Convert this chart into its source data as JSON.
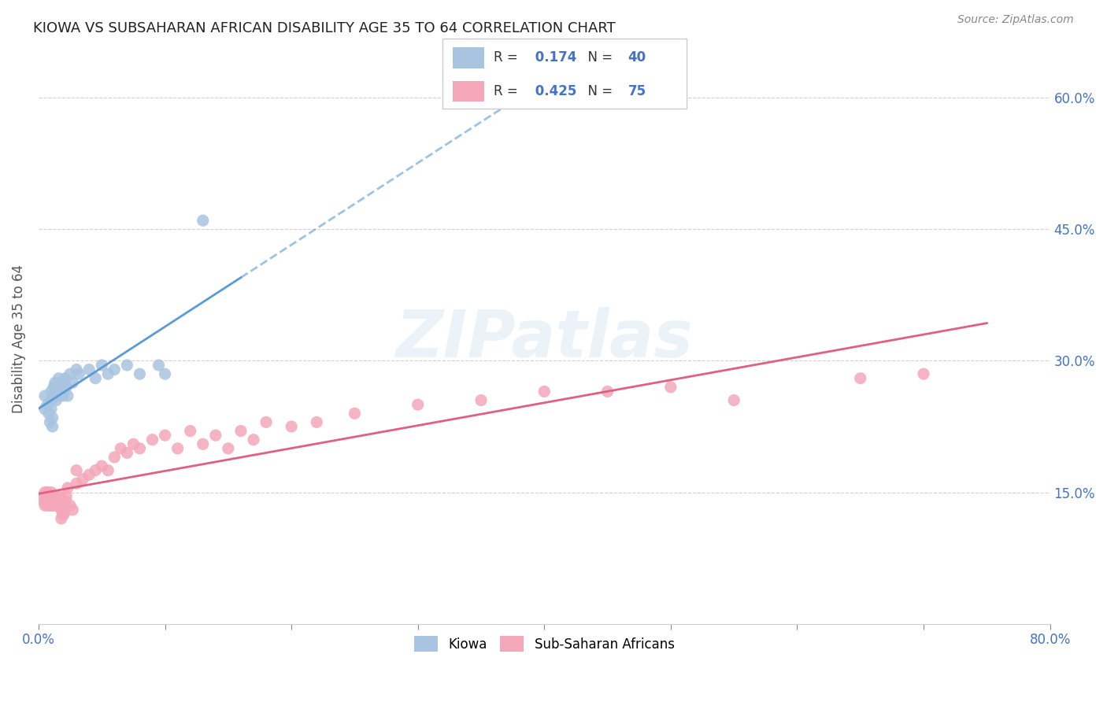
{
  "title": "KIOWA VS SUBSAHARAN AFRICAN DISABILITY AGE 35 TO 64 CORRELATION CHART",
  "source": "Source: ZipAtlas.com",
  "ylabel": "Disability Age 35 to 64",
  "xlim": [
    0.0,
    0.8
  ],
  "ylim": [
    0.0,
    0.65
  ],
  "ytick_positions": [
    0.15,
    0.3,
    0.45,
    0.6
  ],
  "ytick_labels": [
    "15.0%",
    "30.0%",
    "45.0%",
    "60.0%"
  ],
  "kiowa_R": 0.174,
  "kiowa_N": 40,
  "subsaharan_R": 0.425,
  "subsaharan_N": 75,
  "kiowa_color": "#a8c4e0",
  "subsaharan_color": "#f4a7b9",
  "kiowa_line_color": "#5b9bd5",
  "subsaharan_line_color": "#e06080",
  "background_color": "#ffffff",
  "grid_color": "#d0d0d0",
  "watermark": "ZIPatlas",
  "kiowa_x": [
    0.005,
    0.005,
    0.007,
    0.008,
    0.009,
    0.01,
    0.01,
    0.01,
    0.011,
    0.011,
    0.012,
    0.012,
    0.013,
    0.013,
    0.014,
    0.015,
    0.015,
    0.016,
    0.017,
    0.018,
    0.019,
    0.02,
    0.02,
    0.021,
    0.022,
    0.023,
    0.025,
    0.027,
    0.03,
    0.032,
    0.04,
    0.045,
    0.05,
    0.055,
    0.06,
    0.07,
    0.08,
    0.095,
    0.1,
    0.13
  ],
  "kiowa_y": [
    0.245,
    0.26,
    0.25,
    0.24,
    0.23,
    0.265,
    0.255,
    0.245,
    0.235,
    0.225,
    0.27,
    0.26,
    0.275,
    0.265,
    0.255,
    0.27,
    0.26,
    0.28,
    0.275,
    0.27,
    0.26,
    0.275,
    0.265,
    0.28,
    0.27,
    0.26,
    0.285,
    0.275,
    0.29,
    0.285,
    0.29,
    0.28,
    0.295,
    0.285,
    0.29,
    0.295,
    0.285,
    0.295,
    0.285,
    0.46
  ],
  "subsaharan_x": [
    0.003,
    0.004,
    0.005,
    0.005,
    0.006,
    0.006,
    0.007,
    0.007,
    0.008,
    0.008,
    0.009,
    0.009,
    0.01,
    0.01,
    0.01,
    0.01,
    0.011,
    0.011,
    0.012,
    0.012,
    0.013,
    0.013,
    0.014,
    0.014,
    0.015,
    0.015,
    0.016,
    0.016,
    0.017,
    0.017,
    0.018,
    0.018,
    0.019,
    0.019,
    0.02,
    0.02,
    0.02,
    0.021,
    0.022,
    0.023,
    0.025,
    0.027,
    0.03,
    0.03,
    0.035,
    0.04,
    0.045,
    0.05,
    0.055,
    0.06,
    0.065,
    0.07,
    0.075,
    0.08,
    0.09,
    0.1,
    0.11,
    0.12,
    0.13,
    0.14,
    0.15,
    0.16,
    0.17,
    0.18,
    0.2,
    0.22,
    0.25,
    0.3,
    0.35,
    0.4,
    0.45,
    0.5,
    0.55,
    0.65,
    0.7
  ],
  "subsaharan_y": [
    0.145,
    0.14,
    0.135,
    0.15,
    0.14,
    0.145,
    0.135,
    0.15,
    0.14,
    0.145,
    0.135,
    0.14,
    0.145,
    0.135,
    0.15,
    0.14,
    0.135,
    0.145,
    0.14,
    0.135,
    0.145,
    0.14,
    0.135,
    0.145,
    0.14,
    0.135,
    0.145,
    0.14,
    0.135,
    0.145,
    0.12,
    0.13,
    0.125,
    0.14,
    0.135,
    0.13,
    0.125,
    0.14,
    0.145,
    0.155,
    0.135,
    0.13,
    0.16,
    0.175,
    0.165,
    0.17,
    0.175,
    0.18,
    0.175,
    0.19,
    0.2,
    0.195,
    0.205,
    0.2,
    0.21,
    0.215,
    0.2,
    0.22,
    0.205,
    0.215,
    0.2,
    0.22,
    0.21,
    0.23,
    0.225,
    0.23,
    0.24,
    0.25,
    0.255,
    0.265,
    0.265,
    0.27,
    0.255,
    0.28,
    0.285
  ]
}
